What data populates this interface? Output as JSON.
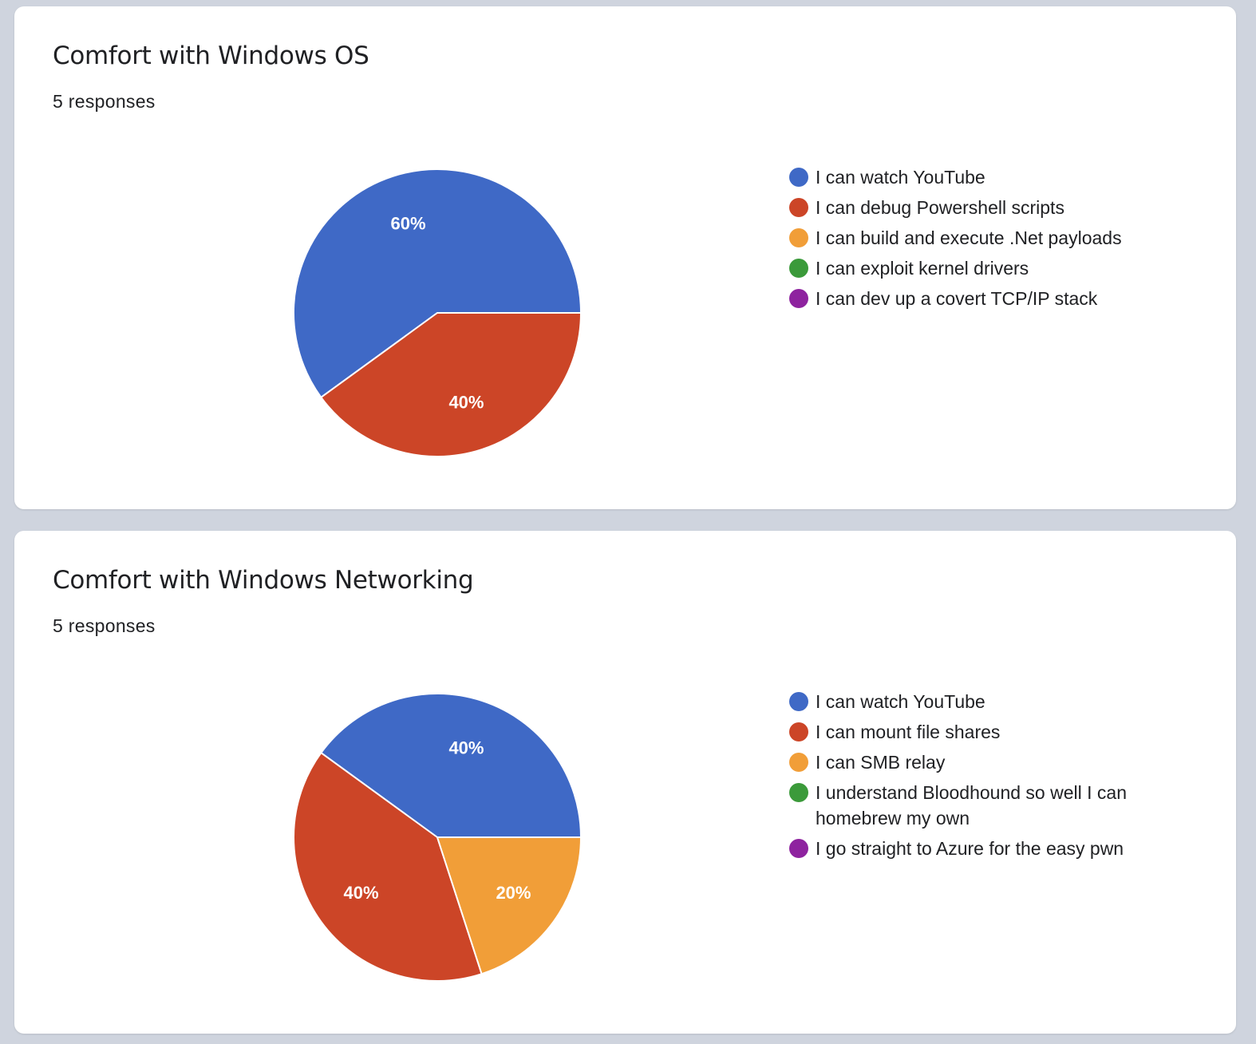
{
  "charts": [
    {
      "title": "Comfort with Windows OS",
      "subtitle": "5 responses",
      "legend": [
        {
          "label": "I can watch YouTube",
          "color": "#3f69c6"
        },
        {
          "label": "I can debug Powershell scripts",
          "color": "#cc4527"
        },
        {
          "label": "I can build and execute .Net payloads",
          "color": "#f19e38"
        },
        {
          "label": "I can exploit kernel drivers",
          "color": "#3b9a3a"
        },
        {
          "label": "I can dev up a covert TCP/IP stack",
          "color": "#8e239f"
        }
      ]
    },
    {
      "title": "Comfort with Windows Networking",
      "subtitle": "5 responses",
      "legend": [
        {
          "label": "I can watch YouTube",
          "color": "#3f69c6"
        },
        {
          "label": "I can mount file shares",
          "color": "#cc4527"
        },
        {
          "label": "I can SMB relay",
          "color": "#f19e38"
        },
        {
          "label": "I understand Bloodhound so well I can homebrew my own",
          "color": "#3b9a3a"
        },
        {
          "label": "I go straight to Azure for the easy pwn",
          "color": "#8e239f"
        }
      ]
    }
  ],
  "chart_data": [
    {
      "type": "pie",
      "title": "Comfort with Windows OS",
      "categories": [
        "I can watch YouTube",
        "I can debug Powershell scripts",
        "I can build and execute .Net payloads",
        "I can exploit kernel drivers",
        "I can dev up a covert TCP/IP stack"
      ],
      "values": [
        60,
        40,
        0,
        0,
        0
      ],
      "labels": [
        "60%",
        "40%",
        "",
        "",
        ""
      ],
      "colors": [
        "#3f69c6",
        "#cc4527",
        "#f19e38",
        "#3b9a3a",
        "#8e239f"
      ],
      "legend_position": "right"
    },
    {
      "type": "pie",
      "title": "Comfort with Windows Networking",
      "categories": [
        "I can watch YouTube",
        "I can mount file shares",
        "I can SMB relay",
        "I understand Bloodhound so well I can homebrew my own",
        "I go straight to Azure for the easy pwn"
      ],
      "values": [
        40,
        40,
        20,
        0,
        0
      ],
      "labels": [
        "40%",
        "40%",
        "20%",
        "",
        ""
      ],
      "colors": [
        "#3f69c6",
        "#cc4527",
        "#f19e38",
        "#3b9a3a",
        "#8e239f"
      ],
      "legend_position": "right"
    }
  ]
}
